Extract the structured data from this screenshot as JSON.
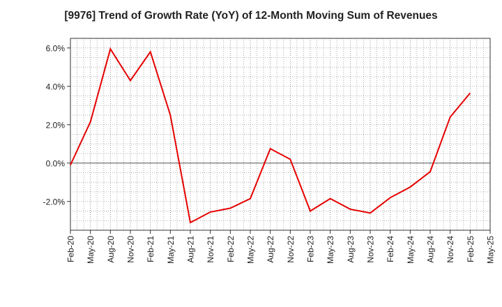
{
  "chart_data": {
    "type": "line",
    "title": "[9976]  Trend of Growth Rate (YoY) of 12-Month Moving Sum of Revenues",
    "xlabel": "",
    "ylabel": "",
    "categories": [
      "Feb-20",
      "May-20",
      "Aug-20",
      "Nov-20",
      "Feb-21",
      "May-21",
      "Aug-21",
      "Nov-21",
      "Feb-22",
      "May-22",
      "Aug-22",
      "Nov-22",
      "Feb-23",
      "May-23",
      "Aug-23",
      "Nov-23",
      "Feb-24",
      "May-24",
      "Aug-24",
      "Nov-24",
      "Feb-25",
      "May-25"
    ],
    "series": [
      {
        "name": "",
        "color": "#e60000",
        "values": [
          -0.1,
          2.15,
          5.95,
          4.3,
          5.8,
          2.5,
          -3.1,
          -2.55,
          -2.35,
          -1.85,
          0.75,
          0.2,
          -2.5,
          -1.85,
          -2.4,
          -2.6,
          -1.8,
          -1.25,
          -0.45,
          2.4,
          3.65,
          null
        ]
      }
    ],
    "yticks": [
      -2.0,
      0.0,
      2.0,
      4.0,
      6.0
    ],
    "ytick_labels": [
      "-2.0%",
      "0.0%",
      "2.0%",
      "4.0%",
      "6.0%"
    ],
    "ylim": [
      -3.5,
      6.5
    ],
    "grid": true,
    "legend": "none"
  }
}
